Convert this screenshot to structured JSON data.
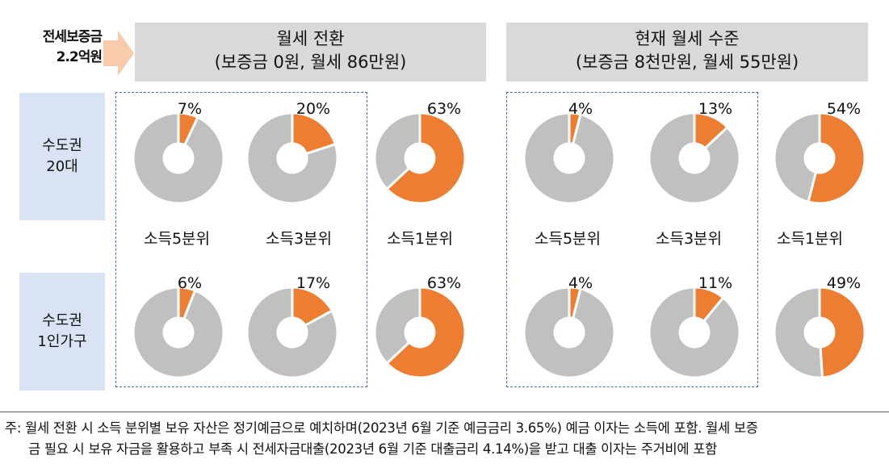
{
  "deposit": {
    "line1": "전세보증금",
    "line2": "2.2억원"
  },
  "columns": [
    {
      "line1": "월세 전환",
      "line2": "(보증금 0원, 월세 86만원)"
    },
    {
      "line1": "현재 월세 수준",
      "line2": "(보증금 8천만원, 월세 55만원)"
    }
  ],
  "rows": [
    {
      "line1": "수도권",
      "line2": "20대"
    },
    {
      "line1": "수도권",
      "line2": "1인가구"
    }
  ],
  "income_labels": [
    "소득5분위",
    "소득3분위",
    "소득1분위"
  ],
  "colors": {
    "highlight": "#ed7d31",
    "remainder": "#c0c0c0",
    "gap": "#ffffff"
  },
  "chart_data": {
    "type": "pie",
    "variant": "donut",
    "unit": "%",
    "groups": [
      {
        "column": "월세 전환",
        "row": "수도권 20대",
        "categories": [
          "소득5분위",
          "소득3분위",
          "소득1분위"
        ],
        "values": [
          7,
          20,
          63
        ],
        "labels": [
          "7%",
          "20%",
          "63%"
        ]
      },
      {
        "column": "현재 월세 수준",
        "row": "수도권 20대",
        "categories": [
          "소득5분위",
          "소득3분위",
          "소득1분위"
        ],
        "values": [
          4,
          13,
          54
        ],
        "labels": [
          "4%",
          "13%",
          "54%"
        ]
      },
      {
        "column": "월세 전환",
        "row": "수도권 1인가구",
        "categories": [
          "소득5분위",
          "소득3분위",
          "소득1분위"
        ],
        "values": [
          6,
          17,
          63
        ],
        "labels": [
          "6%",
          "17%",
          "63%"
        ]
      },
      {
        "column": "현재 월세 수준",
        "row": "수도권 1인가구",
        "categories": [
          "소득5분위",
          "소득3분위",
          "소득1분위"
        ],
        "values": [
          4,
          11,
          49
        ],
        "labels": [
          "4%",
          "11%",
          "49%"
        ]
      }
    ]
  },
  "footnote": {
    "line1": "주: 월세 전환 시 소득 분위별 보유 자산은 정기예금으로 예치하며(2023년 6월 기준 예금금리 3.65%) 예금 이자는 소득에 포함. 월세 보증",
    "line2": "금 필요 시 보유 자금을 활용하고 부족 시 전세자금대출(2023년 6월 기준 대출금리 4.14%)을 받고 대출 이자는 주거비에 포함"
  }
}
